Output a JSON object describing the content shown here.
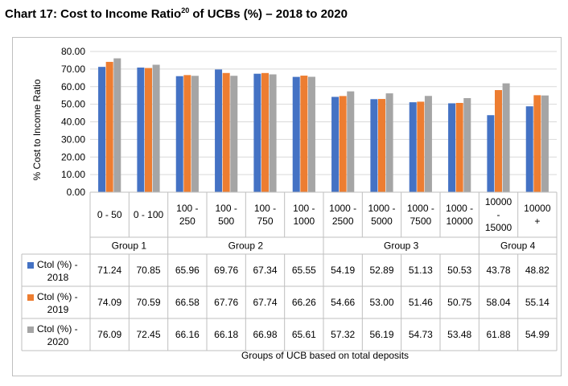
{
  "title": {
    "prefix": "Chart 17: Cost to Income Ratio",
    "footnote": "20",
    "suffix": " of UCBs (%) – 2018 to 2020"
  },
  "chart_data": {
    "type": "bar",
    "title": "Chart 17: Cost to Income Ratio20 of UCBs (%) – 2018 to 2020",
    "xlabel": "Groups of UCB based on total deposits",
    "ylabel": "% Cost to Income Ratio",
    "ylim": [
      0,
      80
    ],
    "yticks": [
      "0.00",
      "10.00",
      "20.00",
      "30.00",
      "40.00",
      "50.00",
      "60.00",
      "70.00",
      "80.00"
    ],
    "grid": true,
    "categories": [
      [
        "0 - 50"
      ],
      [
        "0 - 100"
      ],
      [
        "100 -",
        "250"
      ],
      [
        "100 -",
        "500"
      ],
      [
        "100 -",
        "750"
      ],
      [
        "100 -",
        "1000"
      ],
      [
        "1000 -",
        "2500"
      ],
      [
        "1000 -",
        "5000"
      ],
      [
        "1000 -",
        "7500"
      ],
      [
        "1000 -",
        "10000"
      ],
      [
        "10000",
        "-",
        "15000"
      ],
      [
        "10000",
        "+"
      ]
    ],
    "groups": [
      {
        "name": "Group 1",
        "start": 0,
        "end": 1
      },
      {
        "name": "Group 2",
        "start": 2,
        "end": 5
      },
      {
        "name": "Group 3",
        "start": 6,
        "end": 9
      },
      {
        "name": "Group 4",
        "start": 10,
        "end": 11
      }
    ],
    "series": [
      {
        "name": [
          "Ctol (%) -",
          "2018"
        ],
        "color": "#4472c4",
        "values": [
          71.24,
          70.85,
          65.96,
          69.76,
          67.34,
          65.55,
          54.19,
          52.89,
          51.13,
          50.53,
          43.78,
          48.82
        ],
        "labels": [
          "71.24",
          "70.85",
          "65.96",
          "69.76",
          "67.34",
          "65.55",
          "54.19",
          "52.89",
          "51.13",
          "50.53",
          "43.78",
          "48.82"
        ]
      },
      {
        "name": [
          "Ctol (%) -",
          "2019"
        ],
        "color": "#ed7d31",
        "values": [
          74.09,
          70.59,
          66.58,
          67.76,
          67.74,
          66.26,
          54.66,
          53.0,
          51.46,
          50.75,
          58.04,
          55.14
        ],
        "labels": [
          "74.09",
          "70.59",
          "66.58",
          "67.76",
          "67.74",
          "66.26",
          "54.66",
          "53.00",
          "51.46",
          "50.75",
          "58.04",
          "55.14"
        ]
      },
      {
        "name": [
          "Ctol (%) -",
          "2020"
        ],
        "color": "#a5a5a5",
        "values": [
          76.09,
          72.45,
          66.16,
          66.18,
          66.98,
          65.61,
          57.32,
          56.19,
          54.73,
          53.48,
          61.88,
          54.99
        ],
        "labels": [
          "76.09",
          "72.45",
          "66.16",
          "66.18",
          "66.98",
          "65.61",
          "57.32",
          "56.19",
          "54.73",
          "53.48",
          "61.88",
          "54.99"
        ]
      }
    ]
  }
}
